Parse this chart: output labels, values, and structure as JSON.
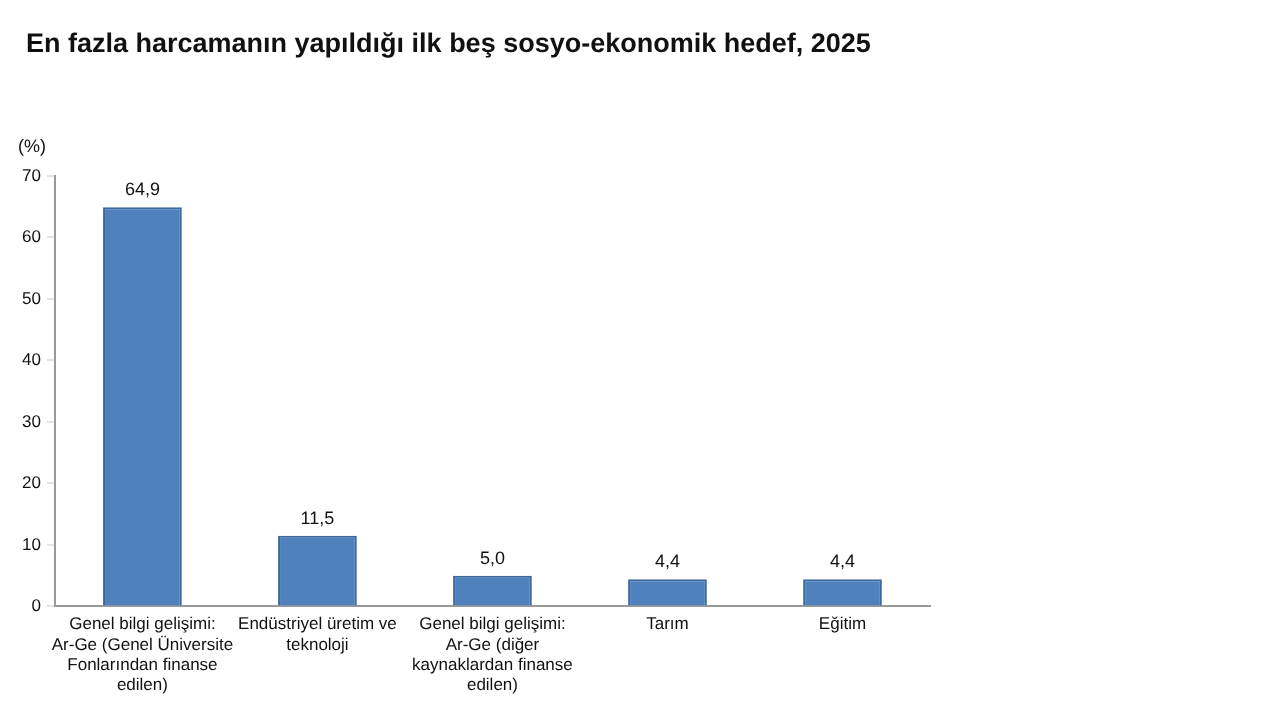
{
  "chart_data": {
    "type": "bar",
    "title": "En fazla harcamanın yapıldığı ilk beş sosyo-ekonomik hedef, 2025",
    "ylabel": "(%)",
    "categories": [
      "Genel bilgi gelişimi: Ar-Ge (Genel Üniversite Fonlarından finanse edilen)",
      "Endüstriyel üretim ve teknoloji",
      "Genel bilgi gelişimi: Ar-Ge (diğer kaynaklardan finanse edilen)",
      "Tarım",
      "Eğitim"
    ],
    "values": [
      64.9,
      11.5,
      5.0,
      4.4,
      4.4
    ],
    "value_labels": [
      "64,9",
      "11,5",
      "5,0",
      "4,4",
      "4,4"
    ],
    "color": "#4f81bd",
    "ylim": [
      0,
      70
    ],
    "yticks": [
      0,
      10,
      20,
      30,
      40,
      50,
      60,
      70
    ],
    "grid": false
  }
}
